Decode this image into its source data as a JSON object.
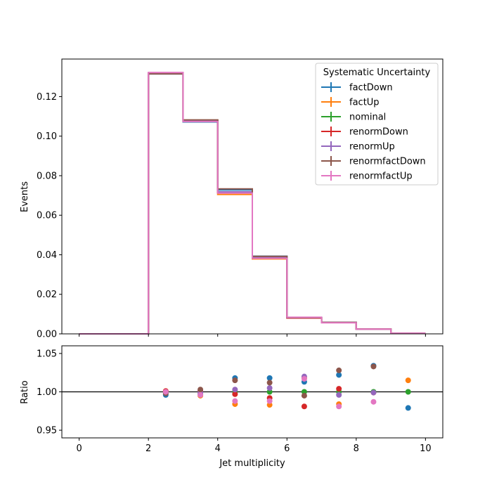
{
  "chart_data": [
    {
      "type": "step",
      "title": "",
      "xlabel": "",
      "ylabel": "Events",
      "xlim": [
        -0.5,
        10.5
      ],
      "ylim": [
        0,
        0.139
      ],
      "xticks": [
        0,
        2,
        4,
        6,
        8,
        10
      ],
      "yticks": [
        0.0,
        0.02,
        0.04,
        0.06,
        0.08,
        0.1,
        0.12
      ],
      "ytick_labels": [
        "0.00",
        "0.02",
        "0.04",
        "0.06",
        "0.08",
        "0.10",
        "0.12"
      ],
      "bin_edges": [
        0,
        1,
        2,
        3,
        4,
        5,
        6,
        7,
        8,
        9,
        10
      ],
      "legend": {
        "title": "Systematic Uncertainty",
        "placement": "upper right"
      },
      "series": [
        {
          "name": "factDown",
          "color": "#1f77b4",
          "values": [
            0,
            0,
            0.1315,
            0.1072,
            0.0728,
            0.0393,
            0.0083,
            0.0058,
            0.0025,
            0.0003
          ]
        },
        {
          "name": "factUp",
          "color": "#ff7f0e",
          "values": [
            0,
            0,
            0.1319,
            0.1081,
            0.0705,
            0.0379,
            0.0081,
            0.0057,
            0.0024,
            0.0003
          ]
        },
        {
          "name": "nominal",
          "color": "#2ca02c",
          "values": [
            0,
            0,
            0.1318,
            0.1078,
            0.0716,
            0.0386,
            0.0082,
            0.0057,
            0.0024,
            0.0003
          ]
        },
        {
          "name": "renormDown",
          "color": "#d62728",
          "values": [
            0,
            0,
            0.132,
            0.1079,
            0.0714,
            0.0383,
            0.008,
            0.0057,
            0.0024,
            0.0003
          ]
        },
        {
          "name": "renormUp",
          "color": "#9467bd",
          "values": [
            0,
            0,
            0.1317,
            0.1077,
            0.0718,
            0.0388,
            0.0083,
            0.0057,
            0.0024,
            0.0003
          ]
        },
        {
          "name": "renormfactDown",
          "color": "#8c564b",
          "values": [
            0,
            0,
            0.1315,
            0.1082,
            0.0733,
            0.0392,
            0.0082,
            0.0058,
            0.0025,
            0.0003
          ]
        },
        {
          "name": "renormfactUp",
          "color": "#e377c2",
          "values": [
            0,
            0,
            0.1322,
            0.1074,
            0.0712,
            0.0382,
            0.0084,
            0.0056,
            0.0024,
            0.0003
          ]
        }
      ]
    },
    {
      "type": "scatter",
      "title": "",
      "xlabel": "Jet multiplicity",
      "ylabel": "Ratio",
      "xlim": [
        -0.5,
        10.5
      ],
      "ylim": [
        0.94,
        1.06
      ],
      "xticks": [
        0,
        2,
        4,
        6,
        8,
        10
      ],
      "yticks": [
        0.95,
        1.0,
        1.05
      ],
      "ytick_labels": [
        "0.95",
        "1.00",
        "1.05"
      ],
      "reference_line": 1.0,
      "x": [
        2.5,
        3.5,
        4.5,
        5.5,
        6.5,
        7.5,
        8.5,
        9.5
      ],
      "series": [
        {
          "name": "factDown",
          "color": "#1f77b4",
          "values": [
            0.996,
            0.997,
            1.018,
            1.018,
            1.013,
            1.022,
            1.034,
            0.979
          ]
        },
        {
          "name": "factUp",
          "color": "#ff7f0e",
          "values": [
            1.001,
            0.995,
            0.984,
            0.983,
            1.018,
            0.984,
            0.999,
            1.015
          ]
        },
        {
          "name": "nominal",
          "color": "#2ca02c",
          "values": [
            1.0,
            1.0,
            1.0,
            1.0,
            1.0,
            1.0,
            1.0,
            1.0
          ]
        },
        {
          "name": "renormDown",
          "color": "#d62728",
          "values": [
            1.001,
            1.001,
            0.997,
            0.992,
            0.981,
            1.004,
            null,
            null
          ]
        },
        {
          "name": "renormUp",
          "color": "#9467bd",
          "values": [
            0.999,
            0.999,
            1.003,
            1.005,
            1.02,
            0.996,
            0.999,
            null
          ]
        },
        {
          "name": "renormfactDown",
          "color": "#8c564b",
          "values": [
            0.998,
            1.003,
            1.015,
            1.012,
            0.995,
            1.028,
            1.033,
            null
          ]
        },
        {
          "name": "renormfactUp",
          "color": "#e377c2",
          "values": [
            1.0,
            0.996,
            0.988,
            0.988,
            1.017,
            0.981,
            0.987,
            null
          ]
        }
      ]
    }
  ]
}
